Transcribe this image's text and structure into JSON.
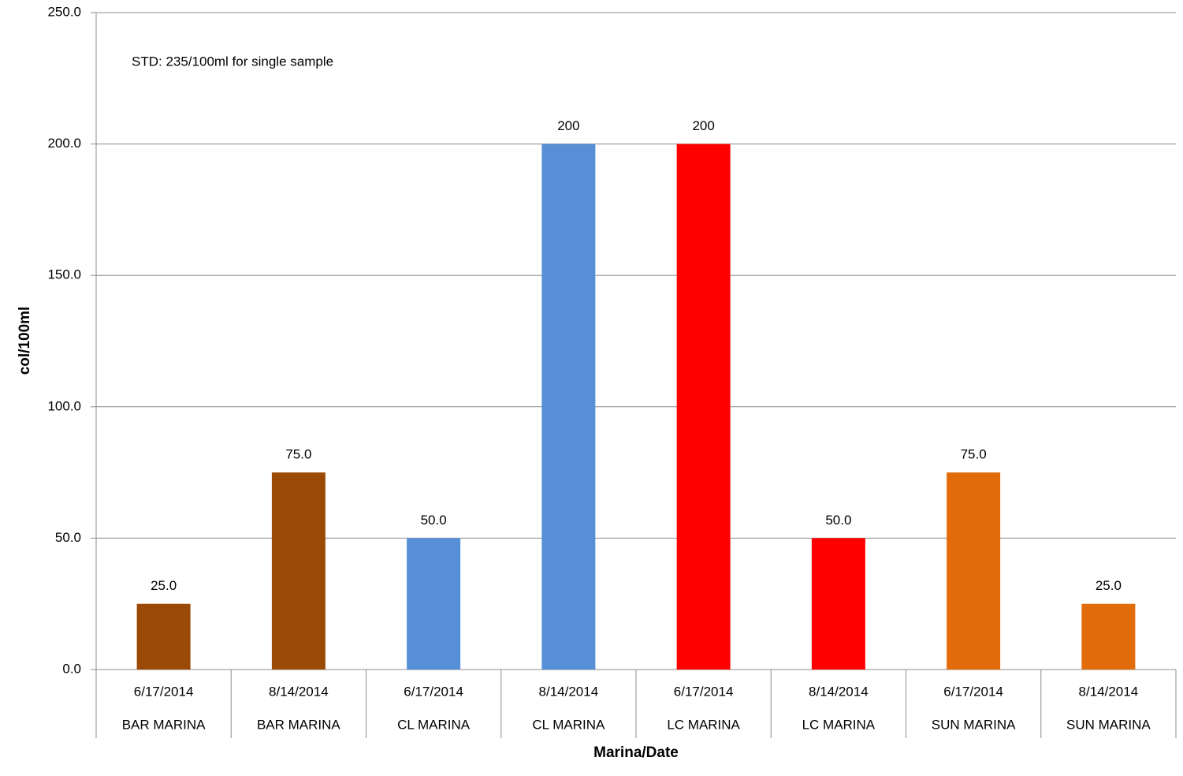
{
  "chart_data": {
    "type": "bar",
    "annotation": "STD: 235/100ml for single sample",
    "x_label": "Marina/Date",
    "y_label": "col/100ml",
    "categories": [
      "6/17/2014",
      "8/14/2014",
      "6/17/2014",
      "8/14/2014",
      "6/17/2014",
      "8/14/2014",
      "6/17/2014",
      "8/14/2014"
    ],
    "groups": [
      "BAR MARINA",
      "BAR MARINA",
      "CL MARINA",
      "CL MARINA",
      "LC MARINA",
      "LC MARINA",
      "SUN MARINA",
      "SUN MARINA"
    ],
    "values": [
      25,
      75,
      50,
      200,
      200,
      50,
      75,
      25
    ],
    "value_labels": [
      "25.0",
      "75.0",
      "50.0",
      "200",
      "200",
      "50.0",
      "75.0",
      "25.0"
    ],
    "colors": [
      "#9b4a06",
      "#9b4a06",
      "#568fd6",
      "#568fd6",
      "#ff0000",
      "#ff0000",
      "#e36c0a",
      "#e36c0a"
    ],
    "ylim": [
      0,
      250
    ],
    "yticks": [
      {
        "value": 0,
        "label": "0.0"
      },
      {
        "value": 50,
        "label": "50.0"
      },
      {
        "value": 100,
        "label": "100.0"
      },
      {
        "value": 150,
        "label": "150.0"
      },
      {
        "value": 200,
        "label": "200.0"
      },
      {
        "value": 250,
        "label": "250.0"
      }
    ],
    "grid": true
  }
}
